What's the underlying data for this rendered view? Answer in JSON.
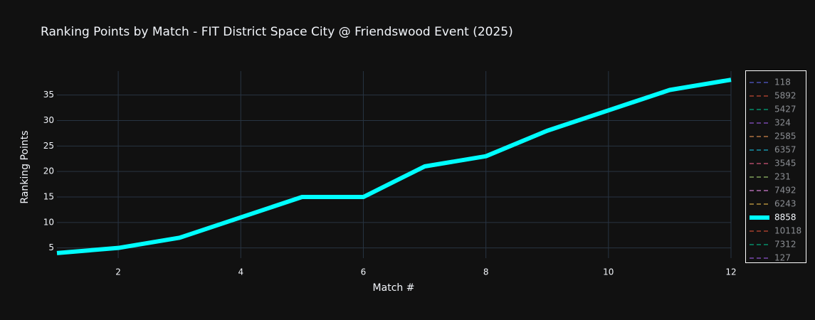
{
  "chart_data": {
    "type": "line",
    "title": "Ranking Points by Match - FIT District Space City @ Friendswood Event (2025)",
    "x_label": "Match #",
    "y_label": "Ranking Points",
    "x": [
      1,
      2,
      3,
      4,
      5,
      6,
      7,
      8,
      9,
      10,
      11,
      12
    ],
    "xlim": [
      1,
      12
    ],
    "xticks": [
      2,
      4,
      6,
      8,
      10,
      12
    ],
    "ylim": [
      3,
      39.7
    ],
    "yticks": [
      5,
      10,
      15,
      20,
      25,
      30,
      35
    ],
    "grid": true,
    "legend": "right",
    "series": [
      {
        "name": "118",
        "color": "#636efa",
        "visible": "legendonly"
      },
      {
        "name": "5892",
        "color": "#ef553b",
        "visible": "legendonly"
      },
      {
        "name": "5427",
        "color": "#00cc96",
        "visible": "legendonly"
      },
      {
        "name": "324",
        "color": "#ab63fa",
        "visible": "legendonly"
      },
      {
        "name": "2585",
        "color": "#ffa15a",
        "visible": "legendonly"
      },
      {
        "name": "6357",
        "color": "#19d3f3",
        "visible": "legendonly"
      },
      {
        "name": "3545",
        "color": "#ff6692",
        "visible": "legendonly"
      },
      {
        "name": "231",
        "color": "#b6e880",
        "visible": "legendonly"
      },
      {
        "name": "7492",
        "color": "#ff97ff",
        "visible": "legendonly"
      },
      {
        "name": "6243",
        "color": "#fecb52",
        "visible": "legendonly"
      },
      {
        "name": "8858",
        "color": "#00ffff",
        "values": [
          4,
          5,
          7,
          11,
          15,
          15,
          21,
          23,
          28,
          32,
          36,
          38
        ]
      },
      {
        "name": "10118",
        "color": "#ef553b",
        "visible": "legendonly"
      },
      {
        "name": "7312",
        "color": "#00cc96",
        "visible": "legendonly"
      },
      {
        "name": "127",
        "color": "#ab63fa",
        "visible": "legendonly"
      }
    ]
  }
}
